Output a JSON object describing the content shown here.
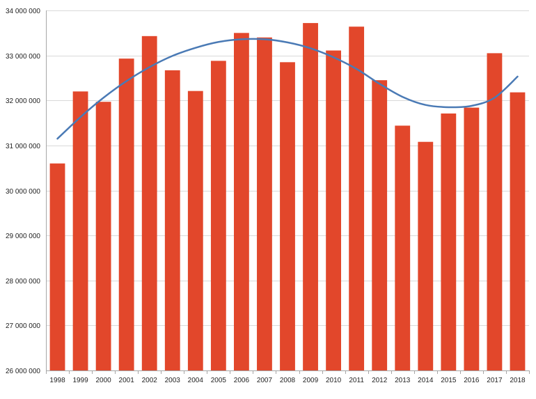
{
  "chart_data": {
    "type": "bar",
    "title": "",
    "xlabel": "",
    "ylabel": "",
    "grid": true,
    "legend": "none",
    "ylim": [
      26000000,
      34000000
    ],
    "yticks": [
      26000000,
      27000000,
      28000000,
      29000000,
      30000000,
      31000000,
      32000000,
      33000000,
      34000000
    ],
    "ytick_labels": [
      "26 000 000",
      "27 000 000",
      "28 000 000",
      "29 000 000",
      "30 000 000",
      "31 000 000",
      "32 000 000",
      "33 000 000",
      "34 000 000"
    ],
    "categories": [
      "1998",
      "1999",
      "2000",
      "2001",
      "2002",
      "2003",
      "2004",
      "2005",
      "2006",
      "2007",
      "2008",
      "2009",
      "2010",
      "2011",
      "2012",
      "2013",
      "2014",
      "2015",
      "2016",
      "2017",
      "2018"
    ],
    "series": [
      {
        "values": [
          30600000,
          32200000,
          31970000,
          32930000,
          33430000,
          32670000,
          32210000,
          32880000,
          33500000,
          33400000,
          32850000,
          33720000,
          33110000,
          33640000,
          32450000,
          31440000,
          31080000,
          31710000,
          31840000,
          33050000,
          32180000
        ],
        "color": "#e2472b"
      }
    ],
    "trendline": {
      "type": "polynomial",
      "color": "#4a7ab5",
      "values": [
        31150000,
        31630000,
        32060000,
        32430000,
        32740000,
        32990000,
        33170000,
        33300000,
        33360000,
        33360000,
        33290000,
        33160000,
        32960000,
        32700000,
        32370000,
        32080000,
        31900000,
        31850000,
        31880000,
        32060000,
        32530000
      ]
    }
  }
}
